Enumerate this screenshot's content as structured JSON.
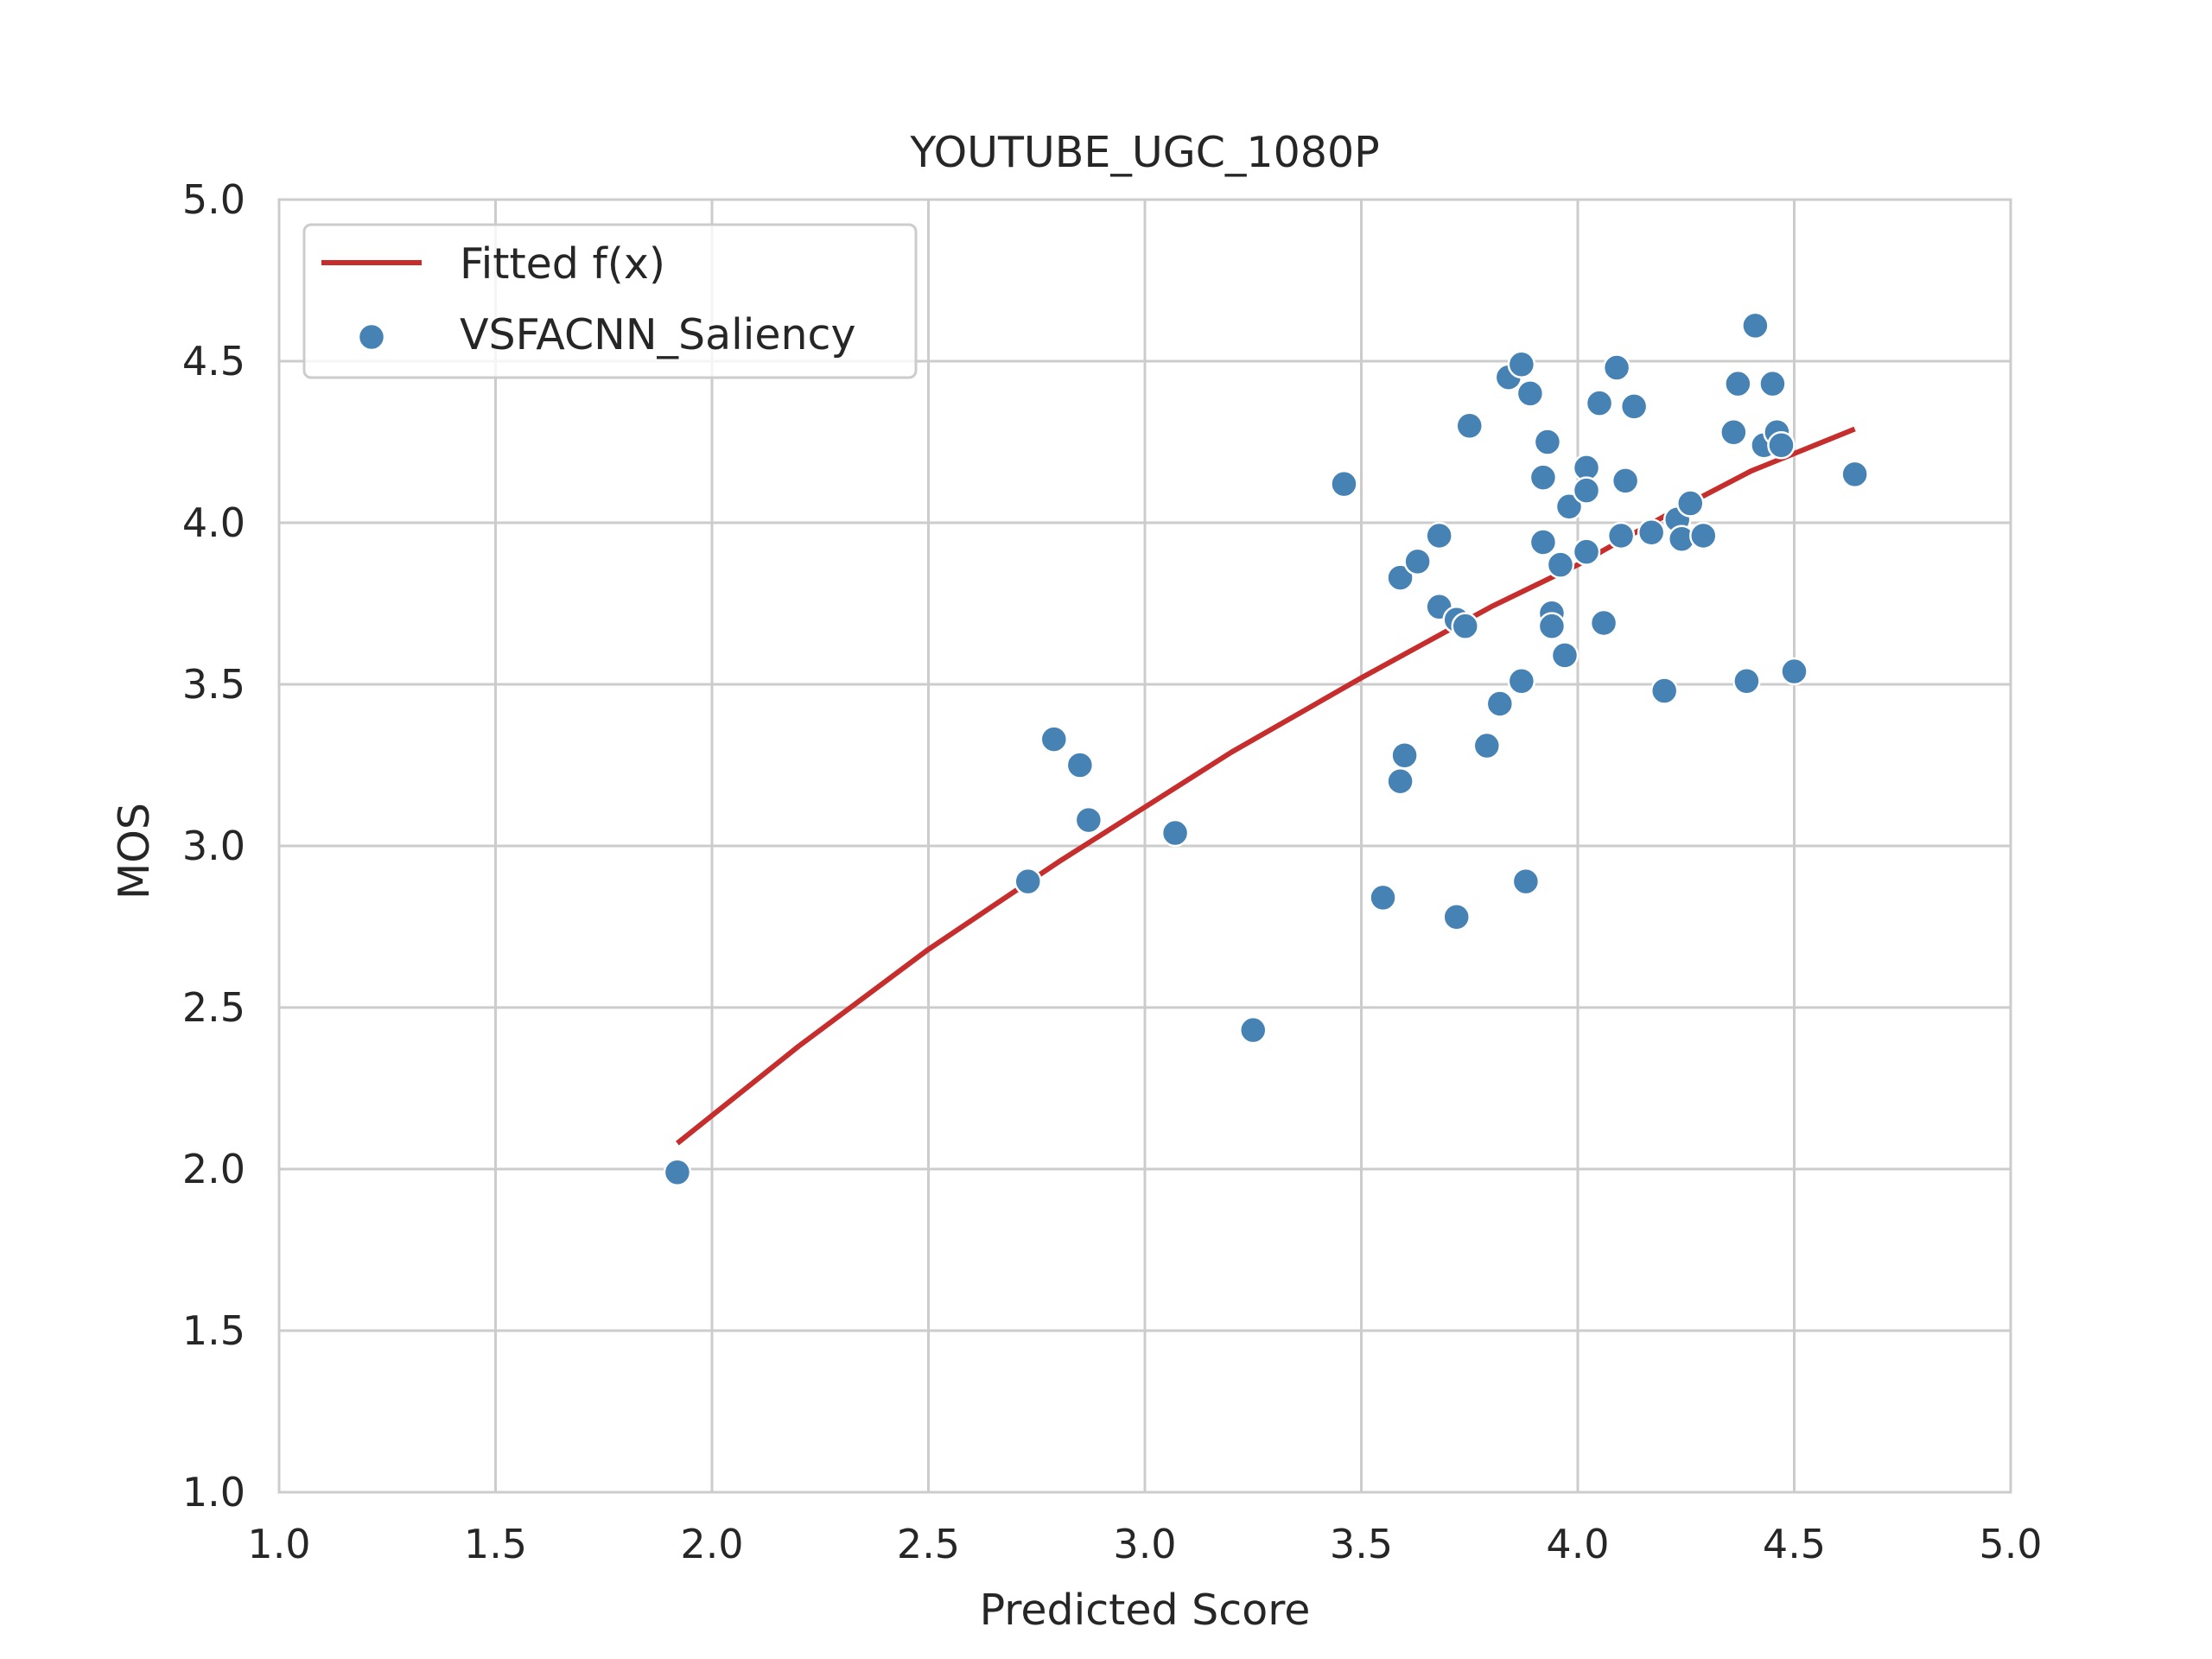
{
  "chart_data": {
    "type": "scatter",
    "title": "YOUTUBE_UGC_1080P",
    "xlabel": "Predicted Score",
    "ylabel": "MOS",
    "xlim": [
      1.0,
      5.0
    ],
    "ylim": [
      1.0,
      5.0
    ],
    "xticks": [
      "1.0",
      "1.5",
      "2.0",
      "2.5",
      "3.0",
      "3.5",
      "4.0",
      "4.5",
      "5.0"
    ],
    "yticks": [
      "1.0",
      "1.5",
      "2.0",
      "2.5",
      "3.0",
      "3.5",
      "4.0",
      "4.5",
      "5.0"
    ],
    "grid": true,
    "legend": {
      "position": "top-left",
      "entries": [
        {
          "label": "Fitted f(x)",
          "kind": "line",
          "color": "#c62d2d"
        },
        {
          "label": "VSFACNN_Saliency",
          "kind": "marker",
          "color": "#4682b4"
        }
      ]
    },
    "fitted_curve": {
      "name": "Fitted f(x)",
      "color": "#c62d2d",
      "points": [
        [
          1.92,
          2.08
        ],
        [
          2.2,
          2.38
        ],
        [
          2.5,
          2.68
        ],
        [
          2.8,
          2.95
        ],
        [
          3.0,
          3.12
        ],
        [
          3.2,
          3.29
        ],
        [
          3.5,
          3.52
        ],
        [
          3.8,
          3.74
        ],
        [
          4.0,
          3.87
        ],
        [
          4.2,
          4.02
        ],
        [
          4.4,
          4.16
        ],
        [
          4.64,
          4.29
        ]
      ]
    },
    "series": [
      {
        "name": "VSFACNN_Saliency",
        "color": "#4682b4",
        "points": [
          [
            1.92,
            1.99
          ],
          [
            2.73,
            2.89
          ],
          [
            2.79,
            3.33
          ],
          [
            2.85,
            3.25
          ],
          [
            2.87,
            3.08
          ],
          [
            3.07,
            3.04
          ],
          [
            3.25,
            2.43
          ],
          [
            3.46,
            4.12
          ],
          [
            3.55,
            2.84
          ],
          [
            3.59,
            3.2
          ],
          [
            3.6,
            3.28
          ],
          [
            3.59,
            3.83
          ],
          [
            3.63,
            3.88
          ],
          [
            3.68,
            3.96
          ],
          [
            3.68,
            3.74
          ],
          [
            3.72,
            3.7
          ],
          [
            3.74,
            3.68
          ],
          [
            3.72,
            2.78
          ],
          [
            3.75,
            4.3
          ],
          [
            3.79,
            3.31
          ],
          [
            3.82,
            3.44
          ],
          [
            3.84,
            4.45
          ],
          [
            3.87,
            4.49
          ],
          [
            3.87,
            3.51
          ],
          [
            3.88,
            2.89
          ],
          [
            3.89,
            4.4
          ],
          [
            3.92,
            4.14
          ],
          [
            3.92,
            3.94
          ],
          [
            3.93,
            4.25
          ],
          [
            3.94,
            3.72
          ],
          [
            3.94,
            3.68
          ],
          [
            3.96,
            3.87
          ],
          [
            3.97,
            3.59
          ],
          [
            3.98,
            4.05
          ],
          [
            4.02,
            4.17
          ],
          [
            4.02,
            4.1
          ],
          [
            4.02,
            3.91
          ],
          [
            4.05,
            4.37
          ],
          [
            4.06,
            3.69
          ],
          [
            4.09,
            4.48
          ],
          [
            4.1,
            3.96
          ],
          [
            4.11,
            4.13
          ],
          [
            4.13,
            4.36
          ],
          [
            4.17,
            3.97
          ],
          [
            4.2,
            3.48
          ],
          [
            4.23,
            4.01
          ],
          [
            4.24,
            3.95
          ],
          [
            4.26,
            4.06
          ],
          [
            4.29,
            3.96
          ],
          [
            4.36,
            4.28
          ],
          [
            4.37,
            4.43
          ],
          [
            4.39,
            3.51
          ],
          [
            4.41,
            4.61
          ],
          [
            4.43,
            4.24
          ],
          [
            4.45,
            4.43
          ],
          [
            4.46,
            4.28
          ],
          [
            4.47,
            4.24
          ],
          [
            4.5,
            3.54
          ],
          [
            4.64,
            4.15
          ]
        ]
      }
    ]
  }
}
